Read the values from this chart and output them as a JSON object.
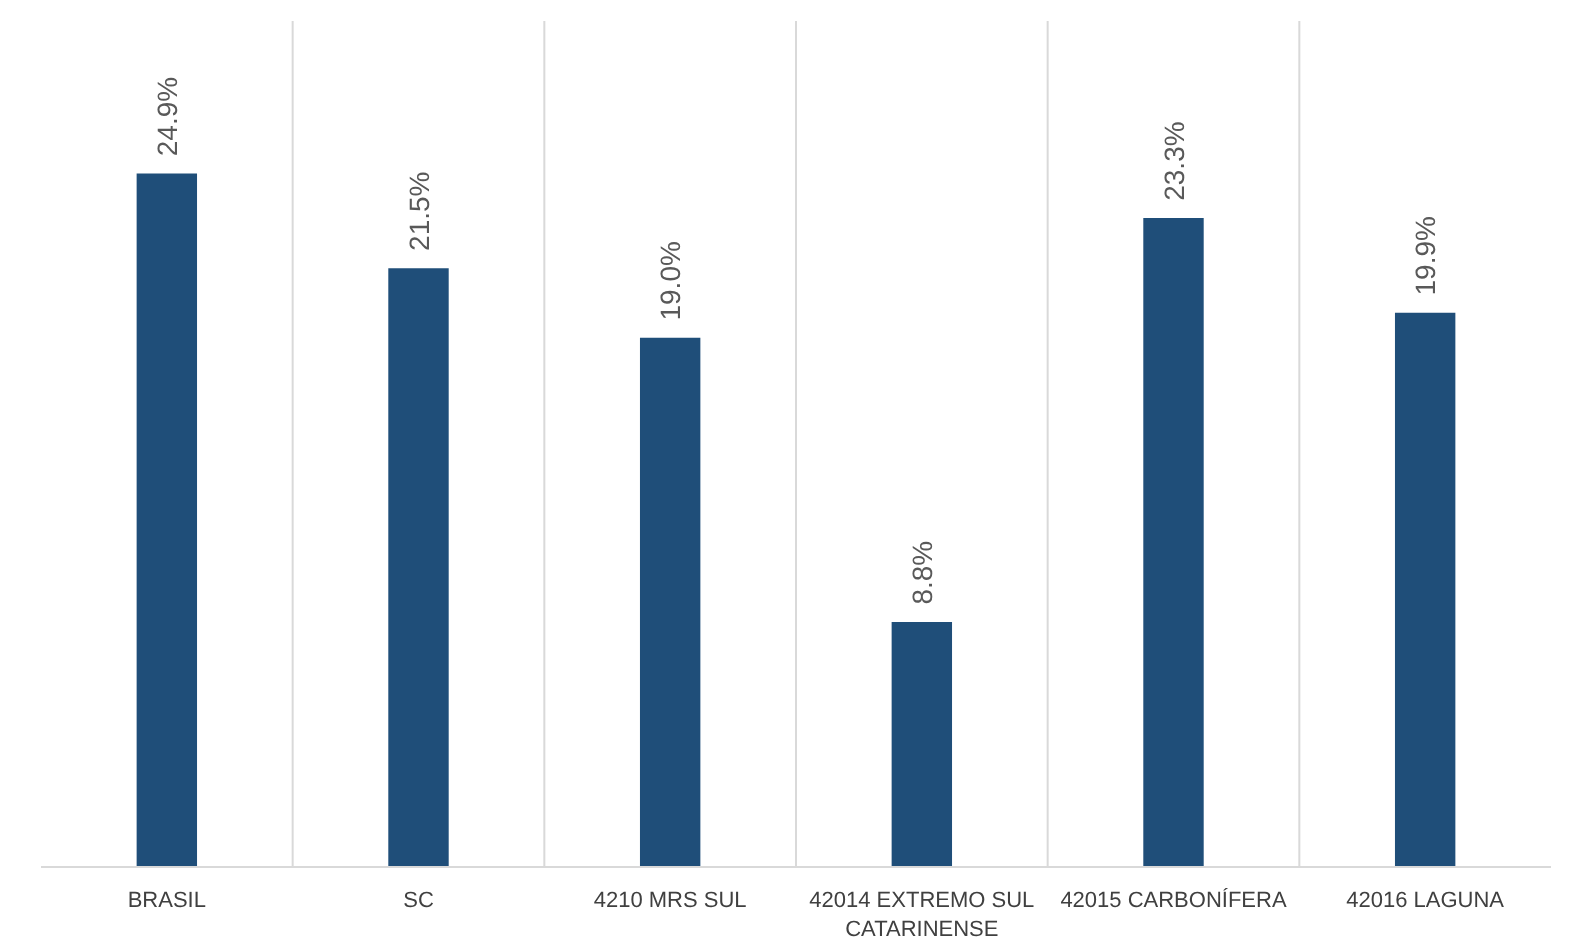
{
  "chart_data": {
    "type": "bar",
    "categories": [
      "BRASIL",
      "SC",
      "4210 MRS SUL",
      "42014 EXTREMO SUL CATARINENSE",
      "42015 CARBONÍFERA",
      "42016 LAGUNA"
    ],
    "values": [
      24.9,
      21.5,
      19.0,
      8.8,
      23.3,
      19.9
    ],
    "value_labels": [
      "24.9%",
      "21.5%",
      "19.0%",
      "8.8%",
      "23.3%",
      "19.9%"
    ],
    "color": "#1f4e79",
    "grid": "x",
    "tick_labels": "x"
  }
}
